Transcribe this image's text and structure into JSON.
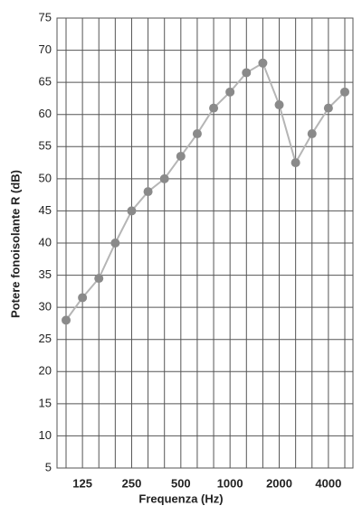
{
  "chart_data": {
    "type": "line",
    "x_label": "Frequenza (Hz)",
    "y_label": "Potere fonoisolante R (dB)",
    "categories": [
      null,
      "125",
      null,
      null,
      "250",
      null,
      null,
      "500",
      null,
      null,
      "1000",
      null,
      null,
      "2000",
      null,
      null,
      "4000",
      null
    ],
    "series": [
      {
        "name": null,
        "color": "#b5b5b5",
        "marker_color": "#8a8a8a",
        "values": [
          28,
          31.5,
          34.5,
          40,
          45,
          48,
          50,
          53.5,
          57,
          61,
          63.5,
          66.5,
          68,
          61.5,
          52.5,
          57,
          61,
          63.5
        ]
      }
    ],
    "ylim": [
      5,
      75
    ],
    "yticks": [
      5,
      10,
      15,
      20,
      25,
      30,
      35,
      40,
      45,
      50,
      55,
      60,
      65,
      70,
      75
    ],
    "grid": true
  }
}
